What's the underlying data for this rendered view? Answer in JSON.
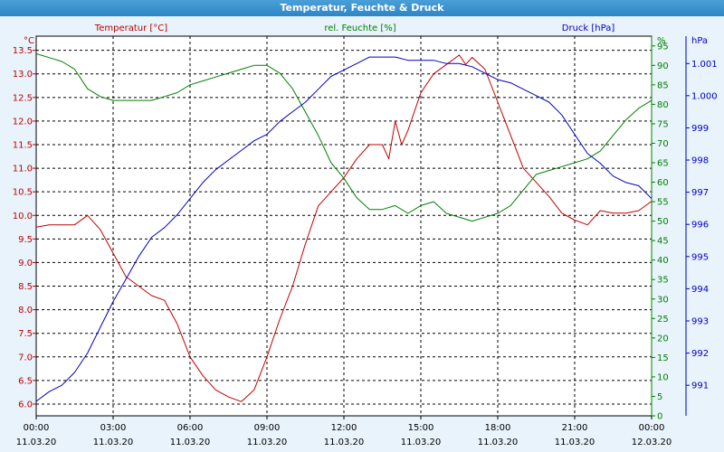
{
  "window": {
    "title": "Temperatur, Feuchte & Druck"
  },
  "colors": {
    "temperature": "#c00000",
    "humidity": "#008000",
    "pressure": "#0000c0",
    "grid": "#000000",
    "plot_bg": "#ffffff",
    "x_text": "#000000"
  },
  "chart_data": {
    "type": "line",
    "grid": true,
    "axes": {
      "left": {
        "label": "Temperatur [°C]",
        "unit": "°C",
        "ylim": [
          5.75,
          13.8
        ],
        "ticks": [
          "6.0",
          "6.5",
          "7.0",
          "7.5",
          "8.0",
          "8.5",
          "9.0",
          "9.5",
          "10.0",
          "10.5",
          "11.0",
          "11.5",
          "12.0",
          "12.5",
          "13.0",
          "13.5"
        ]
      },
      "middle": {
        "label": "rel. Feuchte [%]",
        "unit": "%",
        "ylim": [
          0,
          97.5
        ],
        "ticks": [
          "0",
          "5",
          "10",
          "15",
          "20",
          "25",
          "30",
          "35",
          "40",
          "45",
          "50",
          "55",
          "60",
          "65",
          "70",
          "75",
          "80",
          "85",
          "90",
          "95"
        ]
      },
      "right": {
        "label": "Druck [hPa]",
        "unit": "hPa",
        "ylim": [
          990.05,
          1001.85
        ],
        "ticks": [
          "991",
          "992",
          "993",
          "994",
          "995",
          "996",
          "997",
          "998",
          "999",
          "1.000",
          "1.001"
        ]
      },
      "x": {
        "ticks": [
          {
            "time": "00:00",
            "date": "11.03.20"
          },
          {
            "time": "03:00",
            "date": "11.03.20"
          },
          {
            "time": "06:00",
            "date": "11.03.20"
          },
          {
            "time": "09:00",
            "date": "11.03.20"
          },
          {
            "time": "12:00",
            "date": "11.03.20"
          },
          {
            "time": "15:00",
            "date": "11.03.20"
          },
          {
            "time": "18:00",
            "date": "11.03.20"
          },
          {
            "time": "21:00",
            "date": "11.03.20"
          },
          {
            "time": "00:00",
            "date": "12.03.20"
          }
        ]
      }
    },
    "series": [
      {
        "name": "Temperatur [°C]",
        "axis": "left",
        "x": [
          "11.03.20 00:00",
          "11.03.20 00:30",
          "11.03.20 01:00",
          "11.03.20 01:30",
          "11.03.20 02:00",
          "11.03.20 02:30",
          "11.03.20 03:00",
          "11.03.20 03:30",
          "11.03.20 04:00",
          "11.03.20 04:30",
          "11.03.20 05:00",
          "11.03.20 05:30",
          "11.03.20 06:00",
          "11.03.20 06:30",
          "11.03.20 07:00",
          "11.03.20 07:30",
          "11.03.20 08:00",
          "11.03.20 08:30",
          "11.03.20 09:00",
          "11.03.20 09:30",
          "11.03.20 10:00",
          "11.03.20 10:30",
          "11.03.20 11:00",
          "11.03.20 11:30",
          "11.03.20 12:00",
          "11.03.20 12:30",
          "11.03.20 13:00",
          "11.03.20 13:30",
          "11.03.20 13:45",
          "11.03.20 14:00",
          "11.03.20 14:15",
          "11.03.20 14:30",
          "11.03.20 15:00",
          "11.03.20 15:30",
          "11.03.20 16:00",
          "11.03.20 16:30",
          "11.03.20 16:45",
          "11.03.20 17:00",
          "11.03.20 17:30",
          "11.03.20 18:00",
          "11.03.20 18:30",
          "11.03.20 19:00",
          "11.03.20 19:30",
          "11.03.20 20:00",
          "11.03.20 20:30",
          "11.03.20 21:00",
          "11.03.20 21:30",
          "11.03.20 22:00",
          "11.03.20 22:30",
          "11.03.20 23:00",
          "11.03.20 23:30",
          "12.03.20 00:00"
        ],
        "values": [
          9.75,
          9.8,
          9.8,
          9.8,
          10.0,
          9.7,
          9.2,
          8.7,
          8.5,
          8.3,
          8.2,
          7.7,
          7.0,
          6.6,
          6.3,
          6.15,
          6.05,
          6.3,
          7.0,
          7.8,
          8.5,
          9.4,
          10.2,
          10.5,
          10.8,
          11.2,
          11.5,
          11.5,
          11.2,
          12.0,
          11.5,
          11.8,
          12.6,
          13.0,
          13.2,
          13.4,
          13.2,
          13.35,
          13.1,
          12.4,
          11.7,
          11.0,
          10.7,
          10.4,
          10.05,
          9.9,
          9.8,
          10.1,
          10.05,
          10.05,
          10.1,
          10.3
        ]
      },
      {
        "name": "rel. Feuchte [%]",
        "axis": "middle",
        "x": [
          "11.03.20 00:00",
          "11.03.20 00:30",
          "11.03.20 01:00",
          "11.03.20 01:30",
          "11.03.20 02:00",
          "11.03.20 02:30",
          "11.03.20 03:00",
          "11.03.20 03:30",
          "11.03.20 04:00",
          "11.03.20 04:30",
          "11.03.20 05:00",
          "11.03.20 05:30",
          "11.03.20 06:00",
          "11.03.20 06:30",
          "11.03.20 07:00",
          "11.03.20 07:30",
          "11.03.20 08:00",
          "11.03.20 08:30",
          "11.03.20 09:00",
          "11.03.20 09:30",
          "11.03.20 10:00",
          "11.03.20 10:30",
          "11.03.20 11:00",
          "11.03.20 11:30",
          "11.03.20 12:00",
          "11.03.20 12:30",
          "11.03.20 13:00",
          "11.03.20 13:30",
          "11.03.20 14:00",
          "11.03.20 14:30",
          "11.03.20 15:00",
          "11.03.20 15:30",
          "11.03.20 16:00",
          "11.03.20 16:30",
          "11.03.20 17:00",
          "11.03.20 17:30",
          "11.03.20 18:00",
          "11.03.20 18:30",
          "11.03.20 19:00",
          "11.03.20 19:30",
          "11.03.20 20:00",
          "11.03.20 20:30",
          "11.03.20 21:00",
          "11.03.20 21:30",
          "11.03.20 22:00",
          "11.03.20 22:30",
          "11.03.20 23:00",
          "11.03.20 23:30",
          "12.03.20 00:00"
        ],
        "values": [
          93,
          92,
          91,
          89,
          84,
          82,
          81,
          81,
          81,
          81,
          82,
          83,
          85,
          86,
          87,
          88,
          89,
          90,
          90,
          88,
          84,
          78,
          72,
          65,
          61,
          56,
          53,
          53,
          54,
          52,
          54,
          55,
          52,
          51,
          50,
          51,
          52,
          54,
          58,
          62,
          63,
          64,
          65,
          66,
          68,
          72,
          76,
          79,
          81
        ]
      },
      {
        "name": "Druck [hPa]",
        "axis": "right",
        "x": [
          "11.03.20 00:00",
          "11.03.20 00:30",
          "11.03.20 01:00",
          "11.03.20 01:30",
          "11.03.20 02:00",
          "11.03.20 02:30",
          "11.03.20 03:00",
          "11.03.20 03:30",
          "11.03.20 04:00",
          "11.03.20 04:30",
          "11.03.20 05:00",
          "11.03.20 05:30",
          "11.03.20 06:00",
          "11.03.20 06:30",
          "11.03.20 07:00",
          "11.03.20 07:30",
          "11.03.20 08:00",
          "11.03.20 08:30",
          "11.03.20 09:00",
          "11.03.20 09:30",
          "11.03.20 10:00",
          "11.03.20 10:30",
          "11.03.20 11:00",
          "11.03.20 11:30",
          "11.03.20 12:00",
          "11.03.20 12:30",
          "11.03.20 13:00",
          "11.03.20 13:30",
          "11.03.20 14:00",
          "11.03.20 14:30",
          "11.03.20 15:00",
          "11.03.20 15:30",
          "11.03.20 16:00",
          "11.03.20 16:30",
          "11.03.20 17:00",
          "11.03.20 17:30",
          "11.03.20 18:00",
          "11.03.20 18:30",
          "11.03.20 19:00",
          "11.03.20 19:30",
          "11.03.20 20:00",
          "11.03.20 20:30",
          "11.03.20 21:00",
          "11.03.20 21:30",
          "11.03.20 22:00",
          "11.03.20 22:30",
          "11.03.20 23:00",
          "11.03.20 23:30",
          "12.03.20 00:00"
        ],
        "values": [
          990.5,
          990.8,
          991.0,
          991.4,
          992.0,
          992.8,
          993.6,
          994.3,
          995.0,
          995.6,
          995.9,
          996.3,
          996.8,
          997.3,
          997.7,
          998.0,
          998.3,
          998.6,
          998.8,
          999.2,
          999.5,
          999.8,
          1000.2,
          1000.6,
          1000.8,
          1001.0,
          1001.2,
          1001.2,
          1001.2,
          1001.1,
          1001.1,
          1001.1,
          1001.0,
          1001.0,
          1000.9,
          1000.7,
          1000.5,
          1000.4,
          1000.2,
          1000.0,
          999.8,
          999.4,
          998.8,
          998.2,
          997.9,
          997.5,
          997.3,
          997.2,
          996.8
        ]
      }
    ]
  }
}
